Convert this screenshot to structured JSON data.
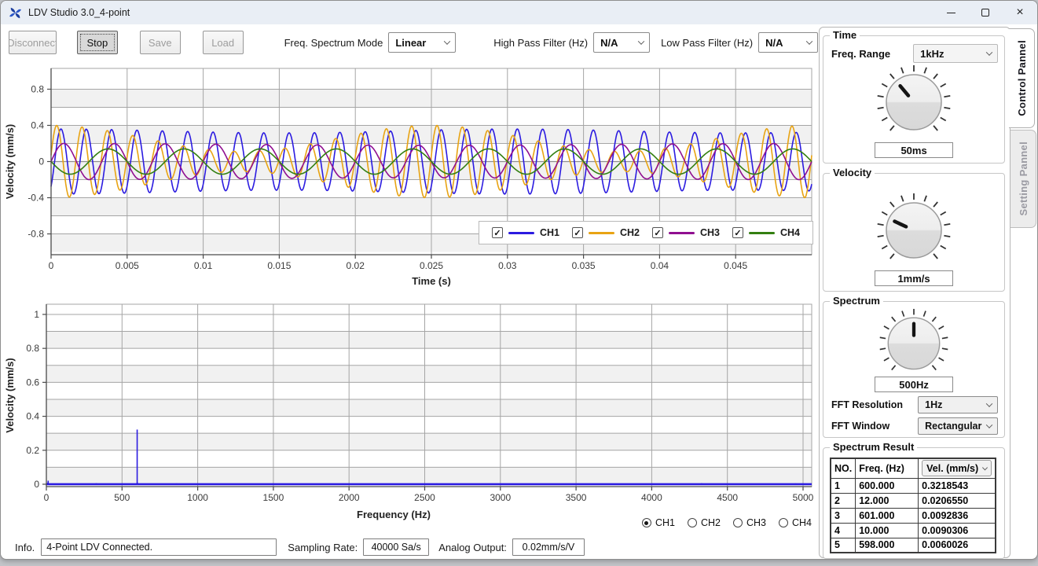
{
  "window": {
    "title": "LDV Studio 3.0_4-point"
  },
  "toolbar": {
    "buttons": [
      {
        "label": "Disconnect",
        "enabled": false
      },
      {
        "label": "Stop",
        "enabled": true,
        "focused": true
      },
      {
        "label": "Save",
        "enabled": false
      },
      {
        "label": "Load",
        "enabled": false
      }
    ],
    "freq_spectrum_mode": {
      "label": "Freq. Spectrum Mode",
      "value": "Linear"
    },
    "high_pass_filter": {
      "label": "High Pass Filter (Hz)",
      "value": "N/A"
    },
    "low_pass_filter": {
      "label": "Low Pass Filter (Hz)",
      "value": "N/A"
    }
  },
  "chart_data": [
    {
      "type": "line",
      "id": "time",
      "xlabel": "Time (s)",
      "ylabel": "Velocity (mm/s)",
      "xlim": [
        0,
        0.05
      ],
      "ylim": [
        -1,
        1
      ],
      "grid": true,
      "xtick_labels": [
        "0",
        "0.005",
        "0.01",
        "0.015",
        "0.02",
        "0.025",
        "0.03",
        "0.035",
        "0.04",
        "0.045"
      ],
      "ytick_labels": [
        "0.8",
        "0.4",
        "0",
        "-0.4",
        "-0.8"
      ],
      "series": [
        {
          "name": "CH1",
          "color": "#2b1be0",
          "checked": true,
          "waveform": {
            "freq_hz": 600,
            "amplitude_mm_s": 0.36,
            "phase_deg": -50,
            "am_freq_hz": 33,
            "am_depth": 0.12
          }
        },
        {
          "name": "CH2",
          "color": "#e8a313",
          "checked": true,
          "waveform": {
            "freq_hz": 600,
            "amplitude_mm_s": 0.4,
            "phase_deg": 10,
            "am_freq_hz": 40,
            "am_depth": 0.72
          }
        },
        {
          "name": "CH3",
          "color": "#900f90",
          "checked": true,
          "waveform": {
            "freq_hz": 300,
            "amplitude_mm_s": 0.2,
            "phase_deg": 0,
            "am_freq_hz": 20,
            "am_depth": 0.1
          }
        },
        {
          "name": "CH4",
          "color": "#337f11",
          "checked": true,
          "waveform": {
            "freq_hz": 200,
            "amplitude_mm_s": 0.14,
            "phase_deg": 180,
            "am_freq_hz": 0,
            "am_depth": 0
          }
        }
      ]
    },
    {
      "type": "line",
      "id": "spectrum",
      "xlabel": "Frequency (Hz)",
      "ylabel": "Velocity (mm/s)",
      "xlim": [
        0,
        5057
      ],
      "ylim": [
        0,
        1
      ],
      "grid": true,
      "line_color": "#2b1be0",
      "xtick_labels": [
        "0",
        "500",
        "1000",
        "1500",
        "2000",
        "2500",
        "3000",
        "3500",
        "4000",
        "4500",
        "5000"
      ],
      "ytick_labels": [
        "1",
        "0.8",
        "0.6",
        "0.4",
        "0.2",
        "0"
      ],
      "peaks": [
        {
          "freq_hz": 600,
          "vel_mm_s": 0.3218543
        },
        {
          "freq_hz": 12,
          "vel_mm_s": 0.020655
        },
        {
          "freq_hz": 601,
          "vel_mm_s": 0.0092836
        },
        {
          "freq_hz": 10,
          "vel_mm_s": 0.0090306
        },
        {
          "freq_hz": 598,
          "vel_mm_s": 0.0060026
        }
      ],
      "noise_bumps": [
        {
          "freq_hz": 330,
          "vel_mm_s": 0.006
        },
        {
          "freq_hz": 860,
          "vel_mm_s": 0.005
        },
        {
          "freq_hz": 1310,
          "vel_mm_s": 0.004
        },
        {
          "freq_hz": 2080,
          "vel_mm_s": 0.004
        },
        {
          "freq_hz": 2580,
          "vel_mm_s": 0.005
        },
        {
          "freq_hz": 3620,
          "vel_mm_s": 0.004
        },
        {
          "freq_hz": 4330,
          "vel_mm_s": 0.006
        },
        {
          "freq_hz": 4660,
          "vel_mm_s": 0.004
        },
        {
          "freq_hz": 4950,
          "vel_mm_s": 0.005
        }
      ]
    }
  ],
  "channel_selector": {
    "options": [
      "CH1",
      "CH2",
      "CH3",
      "CH4"
    ],
    "selected": "CH1"
  },
  "right_panel": {
    "tabs": [
      {
        "label": "Control Pannel",
        "active": true
      },
      {
        "label": "Setting Pannel",
        "active": false
      }
    ],
    "time_group": {
      "title": "Time",
      "freq_range_label": "Freq. Range",
      "freq_range_value": "1kHz",
      "knob_value": "50ms",
      "knob_angle_deg": -40
    },
    "velocity_group": {
      "title": "Velocity",
      "knob_value": "1mm/s",
      "knob_angle_deg": -65
    },
    "spectrum_group": {
      "title": "Spectrum",
      "knob_value": "500Hz",
      "knob_angle_deg": 0,
      "fft_resolution_label": "FFT Resolution",
      "fft_resolution_value": "1Hz",
      "fft_window_label": "FFT Window",
      "fft_window_value": "Rectangular"
    },
    "spectrum_result": {
      "title": "Spectrum Result",
      "headers": [
        "NO.",
        "Freq. (Hz)",
        "Vel. (mm/s)"
      ],
      "rows": [
        [
          "1",
          "600.000",
          "0.3218543"
        ],
        [
          "2",
          "12.000",
          "0.0206550"
        ],
        [
          "3",
          "601.000",
          "0.0092836"
        ],
        [
          "4",
          "10.000",
          "0.0090306"
        ],
        [
          "5",
          "598.000",
          "0.0060026"
        ]
      ]
    }
  },
  "status_bar": {
    "info_label": "Info.",
    "info_value": "4-Point LDV Connected.",
    "sampling_rate_label": "Sampling Rate:",
    "sampling_rate_value": "40000 Sa/s",
    "analog_output_label": "Analog Output:",
    "analog_output_value": "0.02mm/s/V"
  }
}
